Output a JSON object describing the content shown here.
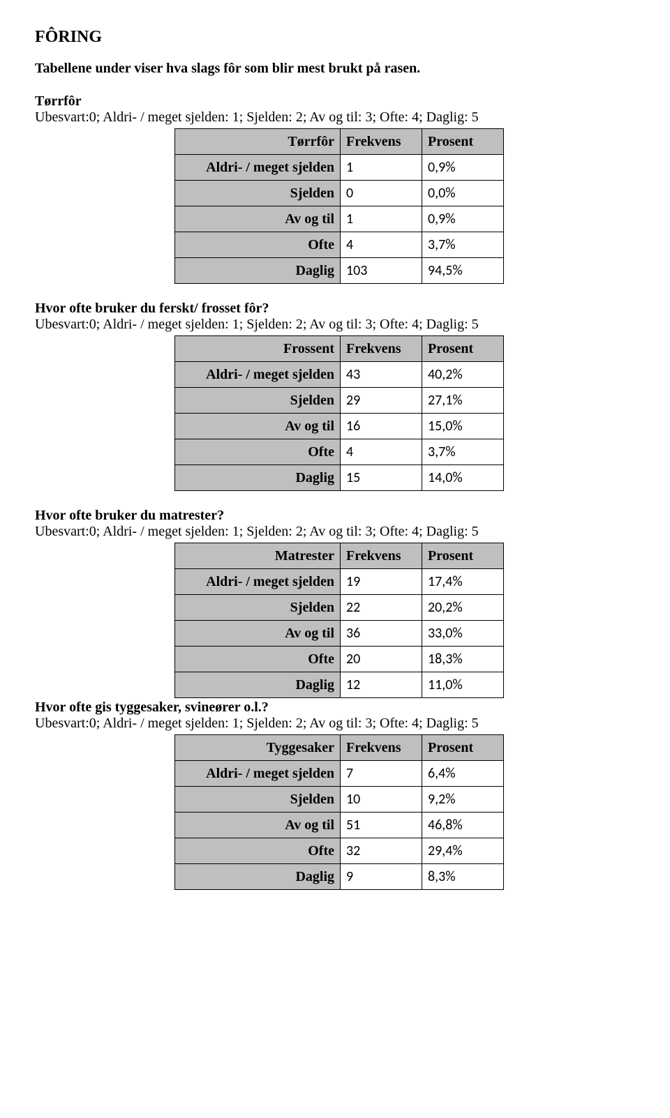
{
  "page": {
    "heading": "FÔRING",
    "intro": "Tabellene under viser hva slags fôr som blir mest brukt på rasen."
  },
  "codekey": "Ubesvart:0; Aldri- / meget sjelden: 1; Sjelden: 2; Av og til: 3; Ofte: 4; Daglig: 5",
  "columns": {
    "freq": "Frekvens",
    "pct": "Prosent"
  },
  "rowlabels": {
    "aldri": "Aldri- / meget sjelden",
    "sjelden": "Sjelden",
    "avogtil": "Av og til",
    "ofte": "Ofte",
    "daglig": "Daglig"
  },
  "sections": {
    "torrfor": {
      "title": "Tørrfôr",
      "tablelabel": "Tørrfôr",
      "rows": {
        "aldri": {
          "f": "1",
          "p": "0,9%"
        },
        "sjelden": {
          "f": "0",
          "p": "0,0%"
        },
        "avogtil": {
          "f": "1",
          "p": "0,9%"
        },
        "ofte": {
          "f": "4",
          "p": "3,7%"
        },
        "daglig": {
          "f": "103",
          "p": "94,5%"
        }
      }
    },
    "frossent": {
      "title": "Hvor ofte bruker du ferskt/ frosset fôr?",
      "tablelabel": "Frossent",
      "rows": {
        "aldri": {
          "f": "43",
          "p": "40,2%"
        },
        "sjelden": {
          "f": "29",
          "p": "27,1%"
        },
        "avogtil": {
          "f": "16",
          "p": "15,0%"
        },
        "ofte": {
          "f": "4",
          "p": "3,7%"
        },
        "daglig": {
          "f": "15",
          "p": "14,0%"
        }
      }
    },
    "matrester": {
      "title": "Hvor ofte bruker du matrester?",
      "tablelabel": "Matrester",
      "rows": {
        "aldri": {
          "f": "19",
          "p": "17,4%"
        },
        "sjelden": {
          "f": "22",
          "p": "20,2%"
        },
        "avogtil": {
          "f": "36",
          "p": "33,0%"
        },
        "ofte": {
          "f": "20",
          "p": "18,3%"
        },
        "daglig": {
          "f": "12",
          "p": "11,0%"
        }
      }
    },
    "tyggesaker": {
      "title": "Hvor ofte gis tyggesaker, svineører o.l.?",
      "tablelabel": "Tyggesaker",
      "rows": {
        "aldri": {
          "f": "7",
          "p": "6,4%"
        },
        "sjelden": {
          "f": "10",
          "p": "9,2%"
        },
        "avogtil": {
          "f": "51",
          "p": "46,8%"
        },
        "ofte": {
          "f": "32",
          "p": "29,4%"
        },
        "daglig": {
          "f": "9",
          "p": "8,3%"
        }
      }
    }
  }
}
